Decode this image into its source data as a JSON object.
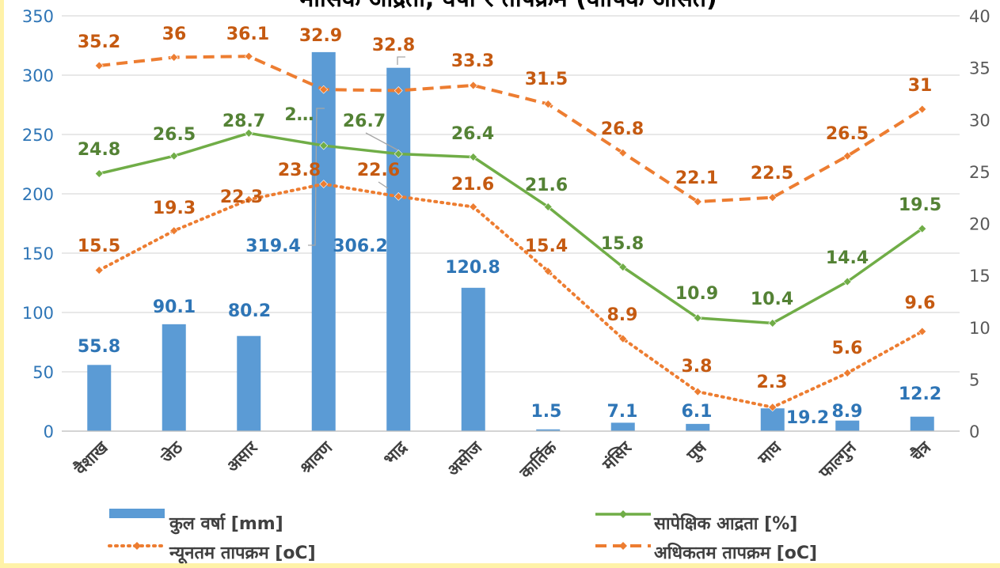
{
  "chart_data": {
    "type": "combo",
    "title": "मासिक आर्द्रता, वर्षा र तापक्रम (वार्षिक औसत)",
    "categories": [
      "वैशाख",
      "जेठ",
      "असार",
      "श्रावण",
      "भाद्र",
      "असोज",
      "कार्तिक",
      "मंसिर",
      "पुष",
      "माघ",
      "फाल्गुन",
      "चैत्र"
    ],
    "y_left": {
      "lim": [
        0,
        350
      ],
      "ticks": [
        "0",
        "50",
        "100",
        "150",
        "200",
        "250",
        "300",
        "350"
      ]
    },
    "y_right": {
      "lim": [
        0,
        40
      ],
      "ticks": [
        "0",
        "5",
        "10",
        "15",
        "20",
        "25",
        "30",
        "35",
        "40"
      ]
    },
    "grid": true,
    "legend_position": "bottom",
    "series": [
      {
        "name": "कुल वर्षा [mm]",
        "type": "bar",
        "axis": "left",
        "color": "#5B9BD5",
        "label_color": "#2E75B6",
        "values": [
          55.8,
          90.1,
          80.2,
          319.4,
          306.2,
          120.8,
          1.5,
          7.1,
          6.1,
          19.2,
          8.9,
          12.2
        ],
        "labels": [
          "55.8",
          "90.1",
          "80.2",
          "319.4",
          "306.2",
          "120.8",
          "1.5",
          "7.1",
          "6.1",
          "19.2",
          "8.9",
          "12.2"
        ]
      },
      {
        "name": "सापेक्षिक आद्रता [%]",
        "type": "line",
        "axis": "right",
        "color": "#70AD47",
        "label_color": "#548235",
        "values": [
          24.8,
          26.5,
          28.7,
          27.5,
          26.7,
          26.4,
          21.6,
          15.8,
          10.9,
          10.4,
          14.4,
          19.5
        ],
        "labels": [
          "24.8",
          "26.5",
          "28.7",
          "2…",
          "26.7",
          "26.4",
          "21.6",
          "15.8",
          "10.9",
          "10.4",
          "14.4",
          "19.5"
        ]
      },
      {
        "name": "न्यूनतम तापक्रम [oC]",
        "type": "line-dotted",
        "axis": "right",
        "color": "#ED7D31",
        "label_color": "#C55A11",
        "values": [
          15.5,
          19.3,
          22.3,
          23.8,
          22.6,
          21.6,
          15.4,
          8.9,
          3.8,
          2.3,
          5.6,
          9.6
        ],
        "labels": [
          "15.5",
          "19.3",
          "22.3",
          "23.8",
          "22.6",
          "21.6",
          "15.4",
          "8.9",
          "3.8",
          "2.3",
          "5.6",
          "9.6"
        ]
      },
      {
        "name": "अधिकतम तापक्रम [oC]",
        "type": "line-dashed",
        "axis": "right",
        "color": "#ED7D31",
        "label_color": "#C55A11",
        "values": [
          35.2,
          36,
          36.1,
          32.9,
          32.8,
          33.3,
          31.5,
          26.8,
          22.1,
          22.5,
          26.5,
          31
        ],
        "labels": [
          "35.2",
          "36",
          "36.1",
          "32.9",
          "32.8",
          "33.3",
          "31.5",
          "26.8",
          "22.1",
          "22.5",
          "26.5",
          "31"
        ]
      }
    ]
  }
}
